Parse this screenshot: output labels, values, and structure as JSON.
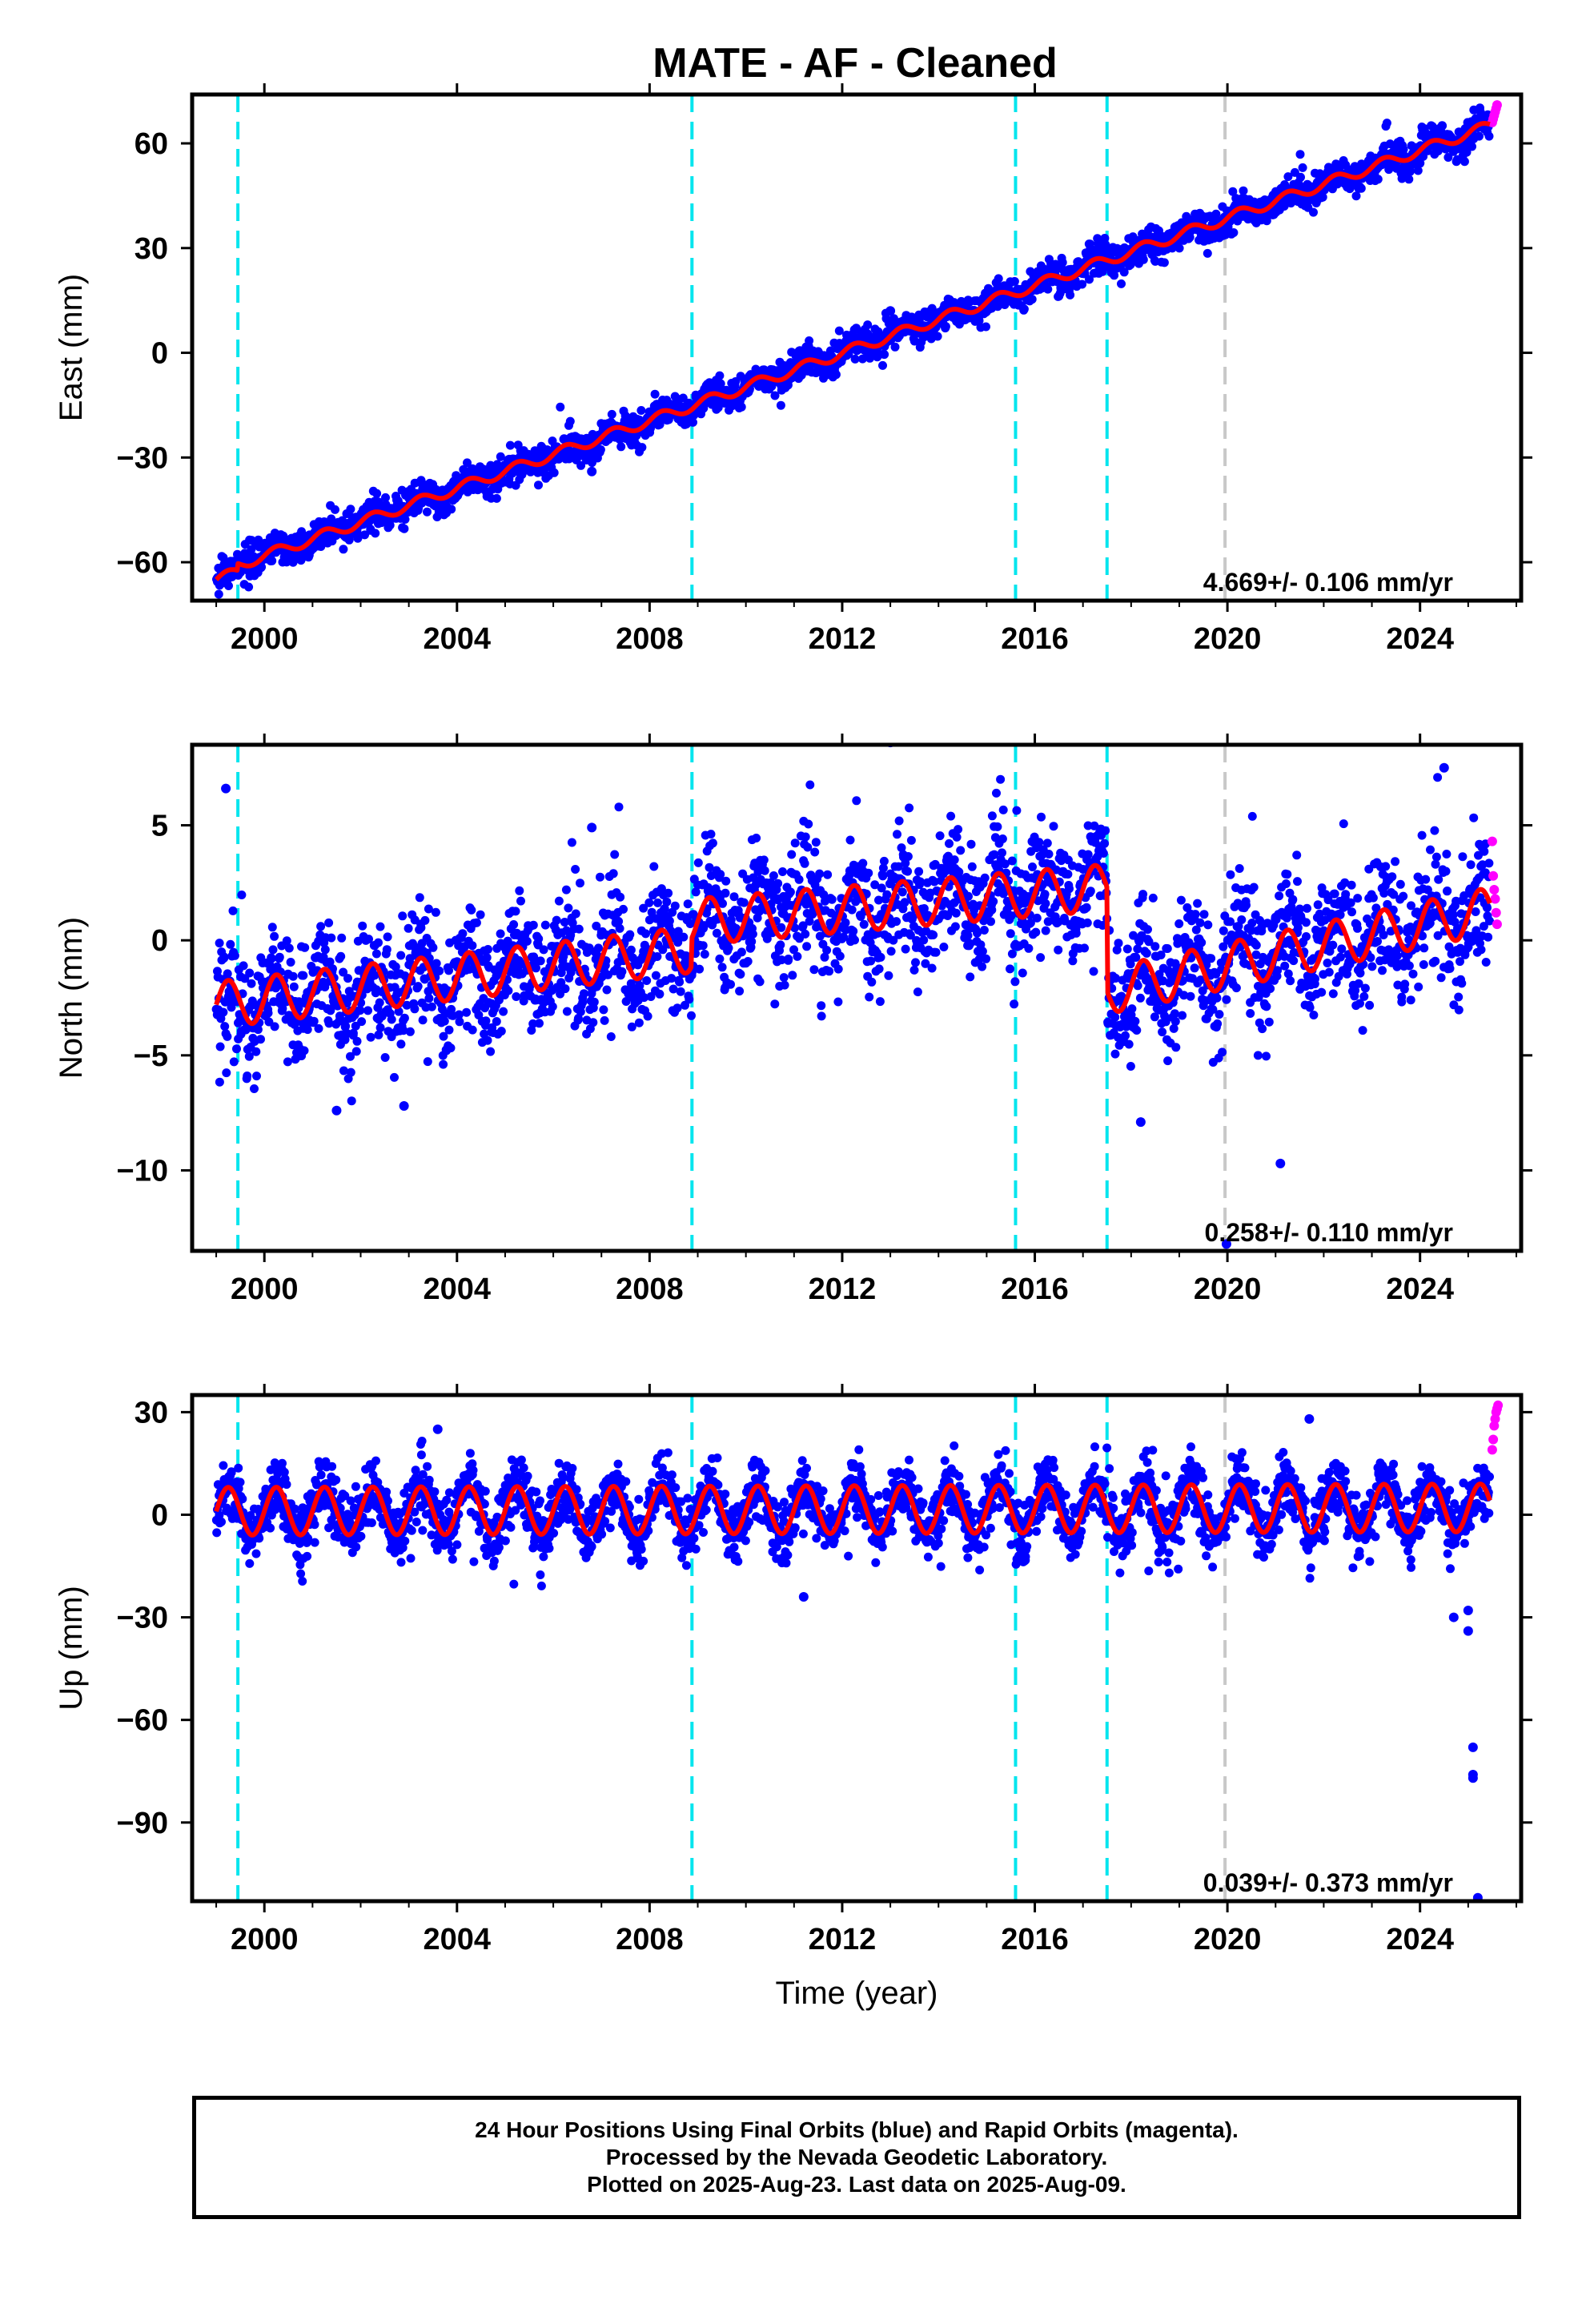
{
  "colors": {
    "final_points": "#0000ff",
    "rapid_points": "#ff00ff",
    "model_line": "#ff0000",
    "equipment_change_line": "#00e5ee",
    "earthquake_line": "#c8c8c8"
  },
  "footer": {
    "line1": "24 Hour Positions Using Final Orbits (blue) and Rapid Orbits (magenta).",
    "line2": "Processed by the Nevada Geodetic Laboratory.",
    "line3": "Plotted on 2025-Aug-23. Last data on 2025-Aug-09."
  },
  "chart_data": [
    {
      "type": "scatter",
      "title": "MATE  - AF - Cleaned",
      "xlabel": "",
      "ylabel": "East (mm)",
      "xlim": [
        1998.5,
        2026.1
      ],
      "ylim": [
        -71,
        74
      ],
      "xticks": [
        2000,
        2004,
        2008,
        2012,
        2016,
        2020,
        2024
      ],
      "yticks": [
        -60,
        -30,
        0,
        30,
        60
      ],
      "grid": false,
      "annotation": "4.669+/- 0.106 mm/yr",
      "equipment_changes": [
        1999.45,
        2008.88,
        2015.6,
        2017.5
      ],
      "earthquake_lines": [
        2019.95
      ],
      "series": [
        {
          "role": "final",
          "x_range": [
            1999.0,
            2025.45
          ],
          "trend": {
            "x": [
              1999.0,
              2025.45
            ],
            "y": [
              -63,
              65
            ]
          },
          "offsets": [
            {
              "at": 1999.45,
              "value": 2
            }
          ],
          "seasonal_amplitude": 1.5,
          "scatter": 2.2,
          "outliers": [
            {
              "x": 2013.0,
              "y": 12
            },
            {
              "x": 2006.8,
              "y": -34
            },
            {
              "x": 2005.8,
              "y": -30
            }
          ]
        },
        {
          "role": "rapid",
          "x": [
            2025.5,
            2025.52,
            2025.54,
            2025.56,
            2025.58,
            2025.6
          ],
          "y": [
            66,
            67,
            68,
            69,
            70,
            71
          ]
        },
        {
          "role": "model",
          "x_range": [
            1999.0,
            2025.45
          ],
          "trend": {
            "x": [
              1999.0,
              2025.45
            ],
            "y": [
              -63,
              65
            ]
          },
          "offsets": [
            {
              "at": 1999.45,
              "value": 2
            }
          ],
          "seasonal_amplitude": 1.5
        }
      ]
    },
    {
      "type": "scatter",
      "xlabel": "",
      "ylabel": "North (mm)",
      "xlim": [
        1998.5,
        2026.1
      ],
      "ylim": [
        -13.5,
        8.5
      ],
      "xticks": [
        2000,
        2004,
        2008,
        2012,
        2016,
        2020,
        2024
      ],
      "yticks": [
        -10,
        -5,
        0,
        5
      ],
      "grid": false,
      "annotation": "0.258+/- 0.110 mm/yr",
      "equipment_changes": [
        1999.45,
        2008.88,
        2015.6,
        2017.5
      ],
      "earthquake_lines": [
        2019.95
      ],
      "series": [
        {
          "role": "final",
          "x_range": [
            1999.0,
            2025.45
          ],
          "trend": {
            "x": [
              1999.0,
              2008.88,
              2008.88,
              2017.5,
              2017.5,
              2025.45
            ],
            "y": [
              -2.8,
              -0.4,
              0.8,
              2.3,
              -2.2,
              1.3
            ]
          },
          "offsets": [
            {
              "at": 1999.45,
              "value": 0
            }
          ],
          "seasonal_amplitude": 1.0,
          "scatter": 1.3,
          "outliers": [
            {
              "x": 2013.0,
              "y": 8.6
            },
            {
              "x": 2019.98,
              "y": -13.2
            },
            {
              "x": 2021.1,
              "y": -9.7
            },
            {
              "x": 2018.2,
              "y": -7.9
            },
            {
              "x": 1999.2,
              "y": 6.6
            },
            {
              "x": 2001.5,
              "y": -7.4
            },
            {
              "x": 2002.9,
              "y": -7.2
            },
            {
              "x": 2024.5,
              "y": 7.5
            },
            {
              "x": 2006.8,
              "y": 4.9
            }
          ]
        },
        {
          "role": "rapid",
          "x": [
            2025.5,
            2025.52,
            2025.54,
            2025.56,
            2025.58,
            2025.6
          ],
          "y": [
            4.3,
            2.8,
            2.2,
            1.8,
            1.2,
            0.7
          ]
        },
        {
          "role": "model",
          "x_range": [
            1999.0,
            2025.45
          ],
          "trend": {
            "x": [
              1999.0,
              2008.88,
              2008.88,
              2017.5,
              2017.5,
              2025.45
            ],
            "y": [
              -2.8,
              -0.4,
              0.8,
              2.3,
              -2.2,
              1.3
            ]
          },
          "offsets": [
            {
              "at": 1999.45,
              "value": 0
            }
          ],
          "seasonal_amplitude": 1.0
        }
      ]
    },
    {
      "type": "scatter",
      "xlabel": "Time (year)",
      "ylabel": "Up (mm)",
      "xlim": [
        1998.5,
        2026.1
      ],
      "ylim": [
        -113,
        35
      ],
      "xticks": [
        2000,
        2004,
        2008,
        2012,
        2016,
        2020,
        2024
      ],
      "yticks": [
        -90,
        -60,
        -30,
        0,
        30
      ],
      "grid": false,
      "annotation": "0.039+/- 0.373 mm/yr",
      "equipment_changes": [
        1999.45,
        2008.88,
        2015.6,
        2017.5
      ],
      "earthquake_lines": [
        2019.95
      ],
      "series": [
        {
          "role": "final",
          "x_range": [
            1999.0,
            2025.45
          ],
          "trend": {
            "x": [
              1999.0,
              2025.45
            ],
            "y": [
              1,
              2
            ]
          },
          "offsets": [
            {
              "at": 1999.45,
              "value": 0
            }
          ],
          "seasonal_amplitude": 7,
          "scatter": 4.5,
          "outliers": [
            {
              "x": 2025.1,
              "y": -68
            },
            {
              "x": 2025.1,
              "y": -76
            },
            {
              "x": 2025.1,
              "y": -77
            },
            {
              "x": 2025.2,
              "y": -112
            },
            {
              "x": 2024.7,
              "y": -30
            },
            {
              "x": 2025.0,
              "y": -34
            },
            {
              "x": 2025.0,
              "y": -28
            },
            {
              "x": 2011.2,
              "y": -24
            },
            {
              "x": 2003.6,
              "y": 25
            },
            {
              "x": 2021.7,
              "y": 28
            }
          ]
        },
        {
          "role": "rapid",
          "x": [
            2025.5,
            2025.52,
            2025.54,
            2025.56,
            2025.58,
            2025.6,
            2025.62
          ],
          "y": [
            19,
            22,
            26,
            28,
            30,
            31,
            32
          ]
        },
        {
          "role": "model",
          "x_range": [
            1999.0,
            2025.45
          ],
          "trend": {
            "x": [
              1999.0,
              2025.45
            ],
            "y": [
              1,
              2
            ]
          },
          "offsets": [
            {
              "at": 1999.45,
              "value": 0
            }
          ],
          "seasonal_amplitude": 7
        }
      ]
    }
  ]
}
